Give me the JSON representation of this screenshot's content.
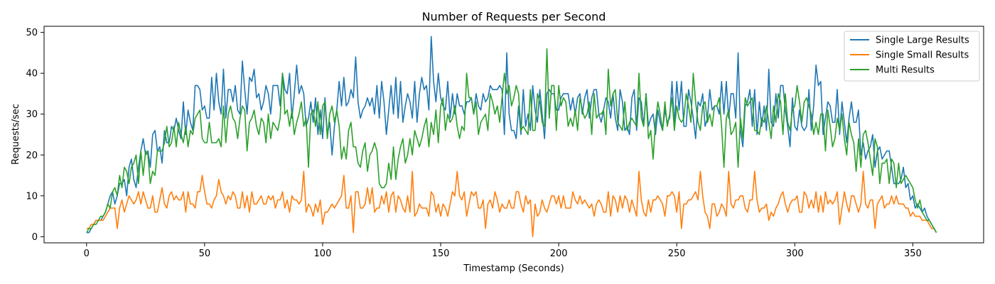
{
  "chart_data": {
    "type": "line",
    "title": "Number of Requests per Second",
    "xlabel": "Timestamp (Seconds)",
    "ylabel": "Requests/sec",
    "xlim": [
      -18,
      380
    ],
    "ylim": [
      -1.5,
      51.5
    ],
    "xticks": [
      0,
      50,
      100,
      150,
      200,
      250,
      300,
      350
    ],
    "yticks": [
      0,
      10,
      20,
      30,
      40,
      50
    ],
    "legend_position": "top-right",
    "grid": false,
    "series": [
      {
        "name": "Single Large Results",
        "color": "#1f77b4",
        "key_points": [
          [
            0,
            1
          ],
          [
            5,
            4
          ],
          [
            10,
            9
          ],
          [
            15,
            12
          ],
          [
            20,
            16
          ],
          [
            25,
            20
          ],
          [
            30,
            22
          ],
          [
            35,
            25
          ],
          [
            40,
            28
          ],
          [
            45,
            31
          ],
          [
            50,
            32
          ],
          [
            55,
            34
          ],
          [
            60,
            35
          ],
          [
            70,
            36
          ],
          [
            80,
            35
          ],
          [
            90,
            33
          ],
          [
            100,
            30
          ],
          [
            110,
            34
          ],
          [
            120,
            31
          ],
          [
            130,
            34
          ],
          [
            140,
            33
          ],
          [
            150,
            35
          ],
          [
            160,
            31
          ],
          [
            170,
            32
          ],
          [
            180,
            30
          ],
          [
            190,
            32
          ],
          [
            200,
            31
          ],
          [
            210,
            33
          ],
          [
            220,
            32
          ],
          [
            230,
            30
          ],
          [
            240,
            31
          ],
          [
            250,
            33
          ],
          [
            260,
            30
          ],
          [
            270,
            33
          ],
          [
            280,
            31
          ],
          [
            290,
            30
          ],
          [
            300,
            32
          ],
          [
            310,
            32
          ],
          [
            320,
            30
          ],
          [
            330,
            24
          ],
          [
            335,
            21
          ],
          [
            340,
            19
          ],
          [
            345,
            15
          ],
          [
            350,
            10
          ],
          [
            355,
            6
          ],
          [
            360,
            1
          ]
        ],
        "spikes": [
          [
            58,
            41
          ],
          [
            66,
            43
          ],
          [
            89,
            42
          ],
          [
            104,
            20
          ],
          [
            114,
            44
          ],
          [
            127,
            25
          ],
          [
            146,
            49
          ],
          [
            178,
            45
          ],
          [
            184,
            25
          ],
          [
            194,
            24
          ],
          [
            258,
            24
          ],
          [
            276,
            45
          ],
          [
            278,
            22
          ],
          [
            289,
            41
          ],
          [
            298,
            22
          ],
          [
            309,
            42
          ],
          [
            312,
            25
          ],
          [
            322,
            23
          ]
        ]
      },
      {
        "name": "Single Small Results",
        "color": "#ff7f0e",
        "key_points": [
          [
            0,
            2
          ],
          [
            5,
            4
          ],
          [
            10,
            6
          ],
          [
            15,
            8
          ],
          [
            20,
            9
          ],
          [
            30,
            9
          ],
          [
            40,
            9
          ],
          [
            60,
            9
          ],
          [
            80,
            9
          ],
          [
            100,
            8
          ],
          [
            120,
            9
          ],
          [
            140,
            8
          ],
          [
            160,
            8
          ],
          [
            180,
            8
          ],
          [
            200,
            8
          ],
          [
            220,
            8
          ],
          [
            240,
            8
          ],
          [
            260,
            8
          ],
          [
            280,
            7
          ],
          [
            300,
            8
          ],
          [
            320,
            8
          ],
          [
            330,
            8
          ],
          [
            340,
            9
          ],
          [
            345,
            9
          ],
          [
            350,
            6
          ],
          [
            355,
            4
          ],
          [
            360,
            1
          ]
        ],
        "spikes": [
          [
            13,
            2
          ],
          [
            49,
            15
          ],
          [
            56,
            14
          ],
          [
            92,
            16
          ],
          [
            100,
            3
          ],
          [
            109,
            15
          ],
          [
            113,
            1
          ],
          [
            138,
            16
          ],
          [
            157,
            16
          ],
          [
            169,
            2
          ],
          [
            189,
            0
          ],
          [
            234,
            16
          ],
          [
            252,
            2
          ],
          [
            260,
            16
          ],
          [
            264,
            2
          ],
          [
            272,
            16
          ],
          [
            283,
            16
          ],
          [
            319,
            3
          ],
          [
            329,
            16
          ],
          [
            334,
            2
          ]
        ]
      },
      {
        "name": "Multi Results",
        "color": "#2ca02c",
        "key_points": [
          [
            0,
            1
          ],
          [
            5,
            4
          ],
          [
            10,
            8
          ],
          [
            15,
            13
          ],
          [
            20,
            16
          ],
          [
            25,
            18
          ],
          [
            30,
            20
          ],
          [
            35,
            24
          ],
          [
            40,
            26
          ],
          [
            45,
            27
          ],
          [
            50,
            26
          ],
          [
            55,
            25
          ],
          [
            60,
            26
          ],
          [
            65,
            26
          ],
          [
            70,
            26
          ],
          [
            75,
            27
          ],
          [
            80,
            28
          ],
          [
            85,
            30
          ],
          [
            90,
            30
          ],
          [
            95,
            29
          ],
          [
            100,
            28
          ],
          [
            105,
            26
          ],
          [
            110,
            23
          ],
          [
            115,
            21
          ],
          [
            120,
            19
          ],
          [
            125,
            17
          ],
          [
            130,
            19
          ],
          [
            135,
            23
          ],
          [
            140,
            26
          ],
          [
            145,
            27
          ],
          [
            150,
            28
          ],
          [
            160,
            30
          ],
          [
            170,
            31
          ],
          [
            180,
            31
          ],
          [
            190,
            31
          ],
          [
            200,
            32
          ],
          [
            210,
            31
          ],
          [
            220,
            31
          ],
          [
            230,
            30
          ],
          [
            240,
            29
          ],
          [
            250,
            30
          ],
          [
            260,
            29
          ],
          [
            270,
            29
          ],
          [
            280,
            29
          ],
          [
            290,
            29
          ],
          [
            300,
            30
          ],
          [
            310,
            27
          ],
          [
            320,
            24
          ],
          [
            325,
            22
          ],
          [
            330,
            20
          ],
          [
            335,
            19
          ],
          [
            340,
            17
          ],
          [
            345,
            14
          ],
          [
            350,
            10
          ],
          [
            355,
            6
          ],
          [
            360,
            1
          ]
        ],
        "spikes": [
          [
            83,
            40
          ],
          [
            94,
            17
          ],
          [
            124,
            13
          ],
          [
            161,
            40
          ],
          [
            177,
            40
          ],
          [
            195,
            46
          ],
          [
            221,
            41
          ],
          [
            234,
            40
          ],
          [
            240,
            19
          ],
          [
            257,
            40
          ],
          [
            270,
            17
          ],
          [
            276,
            17
          ],
          [
            301,
            37
          ]
        ]
      }
    ]
  }
}
